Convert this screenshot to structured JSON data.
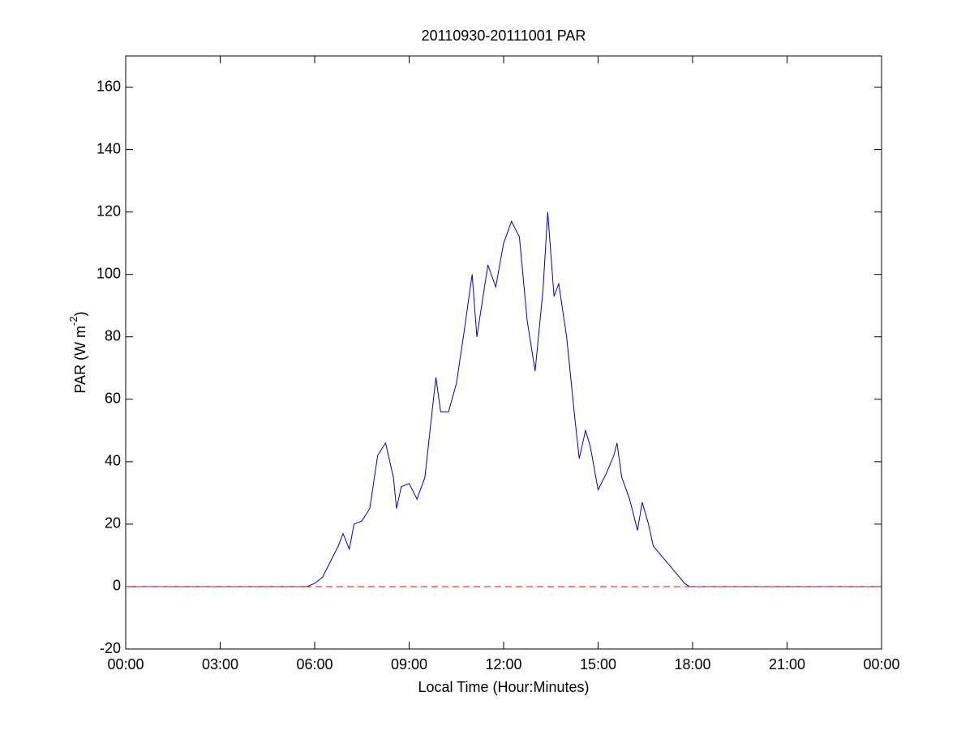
{
  "chart_data": {
    "type": "line",
    "title": "20110930-20111001 PAR",
    "xlabel": "Local Time (Hour:Minutes)",
    "ylabel": {
      "text": "PAR (W m",
      "superscript": "-2",
      "suffix": ")"
    },
    "xlim": [
      0,
      24
    ],
    "xticks": [
      {
        "value": 0,
        "label": "00:00"
      },
      {
        "value": 3,
        "label": "03:00"
      },
      {
        "value": 6,
        "label": "06:00"
      },
      {
        "value": 9,
        "label": "09:00"
      },
      {
        "value": 12,
        "label": "12:00"
      },
      {
        "value": 15,
        "label": "15:00"
      },
      {
        "value": 18,
        "label": "18:00"
      },
      {
        "value": 21,
        "label": "21:00"
      },
      {
        "value": 24,
        "label": "00:00"
      }
    ],
    "ylim": [
      -20,
      170
    ],
    "yticks": [
      -20,
      0,
      20,
      40,
      60,
      80,
      100,
      120,
      140,
      160
    ],
    "grid": false,
    "reference_line": {
      "value": 0,
      "color": "#ff0000",
      "style": "dashed"
    },
    "x": [
      0,
      5.75,
      6.0,
      6.25,
      6.5,
      6.75,
      6.9,
      7.1,
      7.25,
      7.5,
      7.75,
      8.0,
      8.25,
      8.5,
      8.6,
      8.75,
      9.0,
      9.25,
      9.5,
      9.75,
      9.85,
      10.0,
      10.25,
      10.5,
      10.75,
      11.0,
      11.15,
      11.5,
      11.75,
      12.0,
      12.25,
      12.5,
      12.75,
      13.0,
      13.25,
      13.4,
      13.6,
      13.75,
      14.0,
      14.25,
      14.4,
      14.6,
      14.75,
      15.0,
      15.25,
      15.5,
      15.6,
      15.75,
      16.0,
      16.25,
      16.4,
      16.6,
      16.75,
      17.0,
      17.25,
      17.5,
      17.75,
      17.9,
      24
    ],
    "series": [
      {
        "color": "#0000cc",
        "values": [
          0,
          0,
          1,
          3,
          8,
          13,
          17,
          12,
          20,
          21,
          25,
          42,
          46,
          35,
          25,
          32,
          33,
          28,
          35,
          58,
          67,
          56,
          56,
          65,
          82,
          100,
          80,
          103,
          96,
          110,
          117,
          112,
          85,
          69,
          95,
          120,
          93,
          97,
          80,
          55,
          41,
          50,
          45,
          31,
          36,
          42,
          46,
          35,
          28,
          18,
          27,
          20,
          13,
          10,
          7,
          4,
          1,
          0,
          0
        ]
      }
    ]
  }
}
